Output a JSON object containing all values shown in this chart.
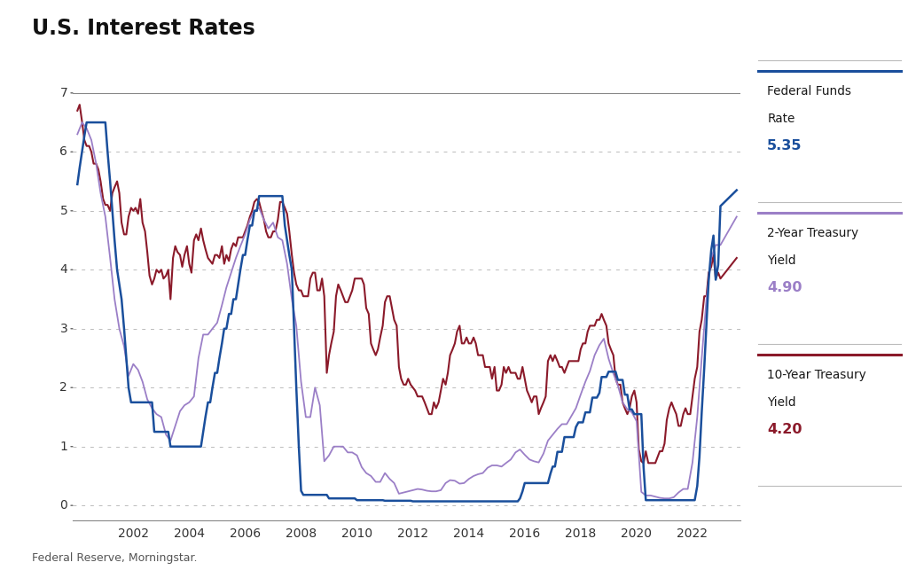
{
  "title": "U.S. Interest Rates",
  "source": "Federal Reserve, Morningstar.",
  "colors": {
    "fed_funds": "#1a4f9c",
    "treasury_2yr": "#9b7fc7",
    "treasury_10yr": "#8b1a2a"
  },
  "legend": {
    "fed_funds_value": "5.35",
    "treasury_2yr_value": "4.90",
    "treasury_10yr_value": "4.20"
  },
  "ylim": [
    -0.25,
    7.4
  ],
  "yticks": [
    0,
    1,
    2,
    3,
    4,
    5,
    6,
    7
  ],
  "xlim": [
    1999.83,
    2023.7
  ],
  "background_color": "#ffffff",
  "grid_color": "#bbbbbb",
  "fed_funds_data": {
    "dates": [
      2000.0,
      2000.08,
      2000.17,
      2000.25,
      2000.33,
      2000.42,
      2000.5,
      2000.58,
      2000.67,
      2000.75,
      2000.83,
      2000.92,
      2001.0,
      2001.08,
      2001.17,
      2001.25,
      2001.33,
      2001.42,
      2001.5,
      2001.58,
      2001.67,
      2001.75,
      2001.83,
      2001.92,
      2002.0,
      2002.08,
      2002.17,
      2002.25,
      2002.33,
      2002.42,
      2002.5,
      2002.58,
      2002.67,
      2002.75,
      2002.83,
      2002.92,
      2003.0,
      2003.08,
      2003.17,
      2003.25,
      2003.33,
      2003.42,
      2003.5,
      2003.58,
      2003.67,
      2003.75,
      2003.83,
      2003.92,
      2004.0,
      2004.08,
      2004.17,
      2004.25,
      2004.33,
      2004.42,
      2004.5,
      2004.58,
      2004.67,
      2004.75,
      2004.83,
      2004.92,
      2005.0,
      2005.08,
      2005.17,
      2005.25,
      2005.33,
      2005.42,
      2005.5,
      2005.58,
      2005.67,
      2005.75,
      2005.83,
      2005.92,
      2006.0,
      2006.08,
      2006.17,
      2006.25,
      2006.33,
      2006.42,
      2006.5,
      2006.58,
      2006.67,
      2006.75,
      2006.83,
      2006.92,
      2007.0,
      2007.08,
      2007.17,
      2007.25,
      2007.33,
      2007.42,
      2007.5,
      2007.58,
      2007.67,
      2007.75,
      2007.83,
      2007.92,
      2008.0,
      2008.08,
      2008.17,
      2008.25,
      2008.33,
      2008.42,
      2008.5,
      2008.58,
      2008.67,
      2008.75,
      2008.83,
      2008.92,
      2009.0,
      2009.08,
      2009.17,
      2009.25,
      2009.33,
      2009.42,
      2009.5,
      2009.58,
      2009.67,
      2009.75,
      2009.83,
      2009.92,
      2010.0,
      2010.08,
      2010.17,
      2010.25,
      2010.33,
      2010.42,
      2010.5,
      2010.58,
      2010.67,
      2010.75,
      2010.83,
      2010.92,
      2011.0,
      2011.08,
      2011.17,
      2011.25,
      2011.33,
      2011.42,
      2011.5,
      2011.58,
      2011.67,
      2011.75,
      2011.83,
      2011.92,
      2012.0,
      2012.08,
      2012.17,
      2012.25,
      2012.33,
      2012.42,
      2012.5,
      2012.58,
      2012.67,
      2012.75,
      2012.83,
      2012.92,
      2013.0,
      2013.08,
      2013.17,
      2013.25,
      2013.33,
      2013.42,
      2013.5,
      2013.58,
      2013.67,
      2013.75,
      2013.83,
      2013.92,
      2014.0,
      2014.08,
      2014.17,
      2014.25,
      2014.33,
      2014.42,
      2014.5,
      2014.58,
      2014.67,
      2014.75,
      2014.83,
      2014.92,
      2015.0,
      2015.08,
      2015.17,
      2015.25,
      2015.33,
      2015.42,
      2015.5,
      2015.58,
      2015.67,
      2015.75,
      2015.83,
      2015.92,
      2016.0,
      2016.08,
      2016.17,
      2016.25,
      2016.33,
      2016.42,
      2016.5,
      2016.58,
      2016.67,
      2016.75,
      2016.83,
      2016.92,
      2017.0,
      2017.08,
      2017.17,
      2017.25,
      2017.33,
      2017.42,
      2017.5,
      2017.58,
      2017.67,
      2017.75,
      2017.83,
      2017.92,
      2018.0,
      2018.08,
      2018.17,
      2018.25,
      2018.33,
      2018.42,
      2018.5,
      2018.58,
      2018.67,
      2018.75,
      2018.83,
      2018.92,
      2019.0,
      2019.08,
      2019.17,
      2019.25,
      2019.33,
      2019.42,
      2019.5,
      2019.58,
      2019.67,
      2019.75,
      2019.83,
      2019.92,
      2020.0,
      2020.08,
      2020.17,
      2020.25,
      2020.33,
      2020.42,
      2020.5,
      2020.58,
      2020.67,
      2020.75,
      2020.83,
      2020.92,
      2021.0,
      2021.08,
      2021.17,
      2021.25,
      2021.33,
      2021.42,
      2021.5,
      2021.58,
      2021.67,
      2021.75,
      2021.83,
      2021.92,
      2022.0,
      2022.08,
      2022.17,
      2022.25,
      2022.33,
      2022.42,
      2022.5,
      2022.58,
      2022.67,
      2022.75,
      2022.83,
      2022.92,
      2023.0,
      2023.58
    ],
    "values": [
      5.45,
      5.73,
      6.02,
      6.27,
      6.5,
      6.5,
      6.5,
      6.5,
      6.5,
      6.5,
      6.5,
      6.5,
      6.5,
      6.0,
      5.5,
      5.0,
      4.5,
      4.0,
      3.75,
      3.5,
      3.0,
      2.5,
      2.0,
      1.75,
      1.75,
      1.75,
      1.75,
      1.75,
      1.75,
      1.75,
      1.75,
      1.75,
      1.75,
      1.25,
      1.25,
      1.25,
      1.25,
      1.25,
      1.25,
      1.25,
      1.0,
      1.0,
      1.0,
      1.0,
      1.0,
      1.0,
      1.0,
      1.0,
      1.0,
      1.0,
      1.0,
      1.0,
      1.0,
      1.0,
      1.25,
      1.5,
      1.75,
      1.75,
      2.0,
      2.25,
      2.25,
      2.5,
      2.75,
      3.0,
      3.0,
      3.25,
      3.25,
      3.5,
      3.5,
      3.75,
      4.0,
      4.25,
      4.25,
      4.5,
      4.75,
      4.75,
      5.0,
      5.0,
      5.25,
      5.25,
      5.25,
      5.25,
      5.25,
      5.25,
      5.25,
      5.25,
      5.25,
      5.25,
      5.25,
      4.75,
      4.5,
      4.25,
      4.0,
      3.0,
      2.0,
      1.0,
      0.25,
      0.18,
      0.18,
      0.18,
      0.18,
      0.18,
      0.18,
      0.18,
      0.18,
      0.18,
      0.18,
      0.18,
      0.12,
      0.12,
      0.12,
      0.12,
      0.12,
      0.12,
      0.12,
      0.12,
      0.12,
      0.12,
      0.12,
      0.12,
      0.09,
      0.09,
      0.09,
      0.09,
      0.09,
      0.09,
      0.09,
      0.09,
      0.09,
      0.09,
      0.09,
      0.09,
      0.08,
      0.08,
      0.08,
      0.08,
      0.08,
      0.08,
      0.08,
      0.08,
      0.08,
      0.08,
      0.08,
      0.08,
      0.07,
      0.07,
      0.07,
      0.07,
      0.07,
      0.07,
      0.07,
      0.07,
      0.07,
      0.07,
      0.07,
      0.07,
      0.07,
      0.07,
      0.07,
      0.07,
      0.07,
      0.07,
      0.07,
      0.07,
      0.07,
      0.07,
      0.07,
      0.07,
      0.07,
      0.07,
      0.07,
      0.07,
      0.07,
      0.07,
      0.07,
      0.07,
      0.07,
      0.07,
      0.07,
      0.07,
      0.07,
      0.07,
      0.07,
      0.07,
      0.07,
      0.07,
      0.07,
      0.07,
      0.07,
      0.07,
      0.12,
      0.24,
      0.38,
      0.38,
      0.38,
      0.38,
      0.38,
      0.38,
      0.38,
      0.38,
      0.38,
      0.38,
      0.38,
      0.54,
      0.66,
      0.66,
      0.91,
      0.91,
      0.91,
      1.16,
      1.16,
      1.16,
      1.16,
      1.16,
      1.33,
      1.41,
      1.41,
      1.41,
      1.58,
      1.58,
      1.58,
      1.83,
      1.83,
      1.83,
      1.91,
      2.18,
      2.18,
      2.18,
      2.27,
      2.27,
      2.27,
      2.27,
      2.13,
      2.13,
      2.13,
      1.88,
      1.88,
      1.63,
      1.63,
      1.55,
      1.55,
      1.55,
      1.55,
      0.65,
      0.09,
      0.09,
      0.09,
      0.09,
      0.09,
      0.09,
      0.09,
      0.09,
      0.09,
      0.09,
      0.09,
      0.09,
      0.09,
      0.09,
      0.09,
      0.09,
      0.09,
      0.09,
      0.09,
      0.09,
      0.09,
      0.09,
      0.33,
      0.83,
      1.58,
      2.33,
      3.08,
      3.83,
      4.33,
      4.58,
      3.83,
      4.08,
      5.08,
      5.35
    ]
  },
  "treasury_2yr_data": {
    "dates": [
      2000.0,
      2000.17,
      2000.33,
      2000.5,
      2000.67,
      2000.83,
      2001.0,
      2001.17,
      2001.33,
      2001.5,
      2001.67,
      2001.83,
      2002.0,
      2002.17,
      2002.33,
      2002.5,
      2002.67,
      2002.83,
      2003.0,
      2003.17,
      2003.33,
      2003.5,
      2003.67,
      2003.83,
      2004.0,
      2004.17,
      2004.33,
      2004.5,
      2004.67,
      2004.83,
      2005.0,
      2005.17,
      2005.33,
      2005.5,
      2005.67,
      2005.83,
      2006.0,
      2006.17,
      2006.33,
      2006.5,
      2006.67,
      2006.83,
      2007.0,
      2007.17,
      2007.33,
      2007.5,
      2007.67,
      2007.83,
      2008.0,
      2008.17,
      2008.33,
      2008.5,
      2008.67,
      2008.83,
      2009.0,
      2009.17,
      2009.33,
      2009.5,
      2009.67,
      2009.83,
      2010.0,
      2010.17,
      2010.33,
      2010.5,
      2010.67,
      2010.83,
      2011.0,
      2011.17,
      2011.33,
      2011.5,
      2011.67,
      2011.83,
      2012.0,
      2012.17,
      2012.33,
      2012.5,
      2012.67,
      2012.83,
      2013.0,
      2013.17,
      2013.33,
      2013.5,
      2013.67,
      2013.83,
      2014.0,
      2014.17,
      2014.33,
      2014.5,
      2014.67,
      2014.83,
      2015.0,
      2015.17,
      2015.33,
      2015.5,
      2015.67,
      2015.83,
      2016.0,
      2016.17,
      2016.33,
      2016.5,
      2016.67,
      2016.83,
      2017.0,
      2017.17,
      2017.33,
      2017.5,
      2017.67,
      2017.83,
      2018.0,
      2018.17,
      2018.33,
      2018.5,
      2018.67,
      2018.83,
      2019.0,
      2019.17,
      2019.33,
      2019.5,
      2019.67,
      2019.83,
      2020.0,
      2020.17,
      2020.33,
      2020.5,
      2020.67,
      2020.83,
      2021.0,
      2021.17,
      2021.33,
      2021.5,
      2021.67,
      2021.83,
      2022.0,
      2022.17,
      2022.33,
      2022.5,
      2022.67,
      2022.83,
      2023.0,
      2023.58
    ],
    "values": [
      6.3,
      6.5,
      6.4,
      6.2,
      5.8,
      5.3,
      4.9,
      4.2,
      3.5,
      3.0,
      2.7,
      2.2,
      2.4,
      2.3,
      2.1,
      1.8,
      1.65,
      1.55,
      1.5,
      1.2,
      1.1,
      1.35,
      1.6,
      1.7,
      1.75,
      1.85,
      2.5,
      2.9,
      2.9,
      3.0,
      3.1,
      3.4,
      3.7,
      3.95,
      4.2,
      4.4,
      4.6,
      4.85,
      5.0,
      5.05,
      4.85,
      4.7,
      4.8,
      4.55,
      4.5,
      4.1,
      3.5,
      3.05,
      2.1,
      1.5,
      1.5,
      2.0,
      1.7,
      0.75,
      0.85,
      1.0,
      1.0,
      1.0,
      0.9,
      0.9,
      0.85,
      0.65,
      0.55,
      0.5,
      0.4,
      0.4,
      0.55,
      0.45,
      0.38,
      0.2,
      0.22,
      0.24,
      0.26,
      0.28,
      0.27,
      0.25,
      0.24,
      0.24,
      0.26,
      0.38,
      0.43,
      0.42,
      0.37,
      0.38,
      0.45,
      0.5,
      0.53,
      0.55,
      0.64,
      0.68,
      0.68,
      0.66,
      0.72,
      0.78,
      0.9,
      0.95,
      0.86,
      0.78,
      0.75,
      0.73,
      0.88,
      1.1,
      1.2,
      1.3,
      1.38,
      1.38,
      1.52,
      1.65,
      1.88,
      2.1,
      2.28,
      2.55,
      2.72,
      2.83,
      2.49,
      2.24,
      2.04,
      1.75,
      1.63,
      1.58,
      1.43,
      0.23,
      0.17,
      0.17,
      0.15,
      0.13,
      0.12,
      0.12,
      0.14,
      0.22,
      0.28,
      0.28,
      0.73,
      1.5,
      2.5,
      3.5,
      4.2,
      4.42,
      4.42,
      4.9
    ]
  },
  "treasury_10yr_data": {
    "dates": [
      2000.0,
      2000.08,
      2000.17,
      2000.25,
      2000.33,
      2000.42,
      2000.5,
      2000.58,
      2000.67,
      2000.75,
      2000.83,
      2000.92,
      2001.0,
      2001.08,
      2001.17,
      2001.25,
      2001.33,
      2001.42,
      2001.5,
      2001.58,
      2001.67,
      2001.75,
      2001.83,
      2001.92,
      2002.0,
      2002.08,
      2002.17,
      2002.25,
      2002.33,
      2002.42,
      2002.5,
      2002.58,
      2002.67,
      2002.75,
      2002.83,
      2002.92,
      2003.0,
      2003.08,
      2003.17,
      2003.25,
      2003.33,
      2003.42,
      2003.5,
      2003.58,
      2003.67,
      2003.75,
      2003.83,
      2003.92,
      2004.0,
      2004.08,
      2004.17,
      2004.25,
      2004.33,
      2004.42,
      2004.5,
      2004.58,
      2004.67,
      2004.75,
      2004.83,
      2004.92,
      2005.0,
      2005.08,
      2005.17,
      2005.25,
      2005.33,
      2005.42,
      2005.5,
      2005.58,
      2005.67,
      2005.75,
      2005.83,
      2005.92,
      2006.0,
      2006.08,
      2006.17,
      2006.25,
      2006.33,
      2006.42,
      2006.5,
      2006.58,
      2006.67,
      2006.75,
      2006.83,
      2006.92,
      2007.0,
      2007.08,
      2007.17,
      2007.25,
      2007.33,
      2007.42,
      2007.5,
      2007.58,
      2007.67,
      2007.75,
      2007.83,
      2007.92,
      2008.0,
      2008.08,
      2008.17,
      2008.25,
      2008.33,
      2008.42,
      2008.5,
      2008.58,
      2008.67,
      2008.75,
      2008.83,
      2008.92,
      2009.0,
      2009.08,
      2009.17,
      2009.25,
      2009.33,
      2009.42,
      2009.5,
      2009.58,
      2009.67,
      2009.75,
      2009.83,
      2009.92,
      2010.0,
      2010.08,
      2010.17,
      2010.25,
      2010.33,
      2010.42,
      2010.5,
      2010.58,
      2010.67,
      2010.75,
      2010.83,
      2010.92,
      2011.0,
      2011.08,
      2011.17,
      2011.25,
      2011.33,
      2011.42,
      2011.5,
      2011.58,
      2011.67,
      2011.75,
      2011.83,
      2011.92,
      2012.0,
      2012.08,
      2012.17,
      2012.25,
      2012.33,
      2012.42,
      2012.5,
      2012.58,
      2012.67,
      2012.75,
      2012.83,
      2012.92,
      2013.0,
      2013.08,
      2013.17,
      2013.25,
      2013.33,
      2013.42,
      2013.5,
      2013.58,
      2013.67,
      2013.75,
      2013.83,
      2013.92,
      2014.0,
      2014.08,
      2014.17,
      2014.25,
      2014.33,
      2014.42,
      2014.5,
      2014.58,
      2014.67,
      2014.75,
      2014.83,
      2014.92,
      2015.0,
      2015.08,
      2015.17,
      2015.25,
      2015.33,
      2015.42,
      2015.5,
      2015.58,
      2015.67,
      2015.75,
      2015.83,
      2015.92,
      2016.0,
      2016.08,
      2016.17,
      2016.25,
      2016.33,
      2016.42,
      2016.5,
      2016.58,
      2016.67,
      2016.75,
      2016.83,
      2016.92,
      2017.0,
      2017.08,
      2017.17,
      2017.25,
      2017.33,
      2017.42,
      2017.5,
      2017.58,
      2017.67,
      2017.75,
      2017.83,
      2017.92,
      2018.0,
      2018.08,
      2018.17,
      2018.25,
      2018.33,
      2018.42,
      2018.5,
      2018.58,
      2018.67,
      2018.75,
      2018.83,
      2018.92,
      2019.0,
      2019.08,
      2019.17,
      2019.25,
      2019.33,
      2019.42,
      2019.5,
      2019.58,
      2019.67,
      2019.75,
      2019.83,
      2019.92,
      2020.0,
      2020.08,
      2020.17,
      2020.25,
      2020.33,
      2020.42,
      2020.5,
      2020.58,
      2020.67,
      2020.75,
      2020.83,
      2020.92,
      2021.0,
      2021.08,
      2021.17,
      2021.25,
      2021.33,
      2021.42,
      2021.5,
      2021.58,
      2021.67,
      2021.75,
      2021.83,
      2021.92,
      2022.0,
      2022.08,
      2022.17,
      2022.25,
      2022.33,
      2022.42,
      2022.5,
      2022.58,
      2022.67,
      2022.75,
      2022.83,
      2022.92,
      2023.0,
      2023.58
    ],
    "values": [
      6.7,
      6.8,
      6.5,
      6.2,
      6.1,
      6.1,
      6.0,
      5.8,
      5.8,
      5.7,
      5.5,
      5.2,
      5.1,
      5.1,
      5.0,
      5.3,
      5.4,
      5.5,
      5.3,
      4.8,
      4.6,
      4.6,
      4.9,
      5.05,
      5.0,
      5.05,
      4.95,
      5.2,
      4.8,
      4.65,
      4.3,
      3.9,
      3.75,
      3.85,
      4.0,
      3.95,
      4.0,
      3.85,
      3.9,
      4.0,
      3.5,
      4.2,
      4.4,
      4.3,
      4.25,
      4.05,
      4.25,
      4.4,
      4.1,
      3.95,
      4.5,
      4.6,
      4.5,
      4.7,
      4.5,
      4.35,
      4.2,
      4.15,
      4.1,
      4.25,
      4.25,
      4.2,
      4.4,
      4.1,
      4.25,
      4.15,
      4.35,
      4.45,
      4.4,
      4.55,
      4.55,
      4.55,
      4.65,
      4.75,
      4.9,
      5.0,
      5.15,
      5.2,
      5.15,
      5.0,
      4.85,
      4.65,
      4.55,
      4.55,
      4.65,
      4.65,
      4.85,
      5.15,
      5.15,
      5.05,
      4.95,
      4.65,
      4.25,
      3.95,
      3.75,
      3.65,
      3.65,
      3.55,
      3.55,
      3.55,
      3.85,
      3.95,
      3.95,
      3.65,
      3.65,
      3.85,
      3.55,
      2.25,
      2.55,
      2.75,
      2.95,
      3.55,
      3.75,
      3.65,
      3.55,
      3.45,
      3.45,
      3.55,
      3.65,
      3.85,
      3.85,
      3.85,
      3.85,
      3.75,
      3.35,
      3.25,
      2.75,
      2.65,
      2.55,
      2.65,
      2.85,
      3.05,
      3.45,
      3.55,
      3.55,
      3.35,
      3.15,
      3.05,
      2.35,
      2.15,
      2.05,
      2.05,
      2.15,
      2.05,
      2.0,
      1.95,
      1.85,
      1.85,
      1.85,
      1.75,
      1.65,
      1.55,
      1.55,
      1.75,
      1.65,
      1.75,
      1.95,
      2.15,
      2.05,
      2.25,
      2.55,
      2.65,
      2.75,
      2.95,
      3.05,
      2.75,
      2.75,
      2.85,
      2.75,
      2.75,
      2.85,
      2.75,
      2.55,
      2.55,
      2.55,
      2.35,
      2.35,
      2.35,
      2.15,
      2.35,
      1.95,
      1.95,
      2.05,
      2.35,
      2.25,
      2.35,
      2.25,
      2.25,
      2.25,
      2.15,
      2.15,
      2.35,
      2.15,
      1.95,
      1.85,
      1.75,
      1.85,
      1.85,
      1.55,
      1.65,
      1.75,
      1.85,
      2.45,
      2.55,
      2.45,
      2.55,
      2.45,
      2.35,
      2.35,
      2.25,
      2.35,
      2.45,
      2.45,
      2.45,
      2.45,
      2.45,
      2.65,
      2.75,
      2.75,
      2.95,
      3.05,
      3.05,
      3.05,
      3.15,
      3.15,
      3.25,
      3.15,
      3.05,
      2.75,
      2.65,
      2.55,
      2.15,
      2.05,
      2.05,
      1.75,
      1.65,
      1.55,
      1.65,
      1.85,
      1.95,
      1.75,
      0.95,
      0.75,
      0.72,
      0.92,
      0.72,
      0.72,
      0.72,
      0.72,
      0.82,
      0.92,
      0.92,
      1.05,
      1.45,
      1.65,
      1.75,
      1.65,
      1.55,
      1.35,
      1.35,
      1.55,
      1.65,
      1.55,
      1.55,
      1.85,
      2.15,
      2.35,
      2.95,
      3.15,
      3.55,
      3.55,
      3.95,
      4.05,
      4.25,
      3.85,
      3.95,
      3.85,
      4.2
    ]
  }
}
